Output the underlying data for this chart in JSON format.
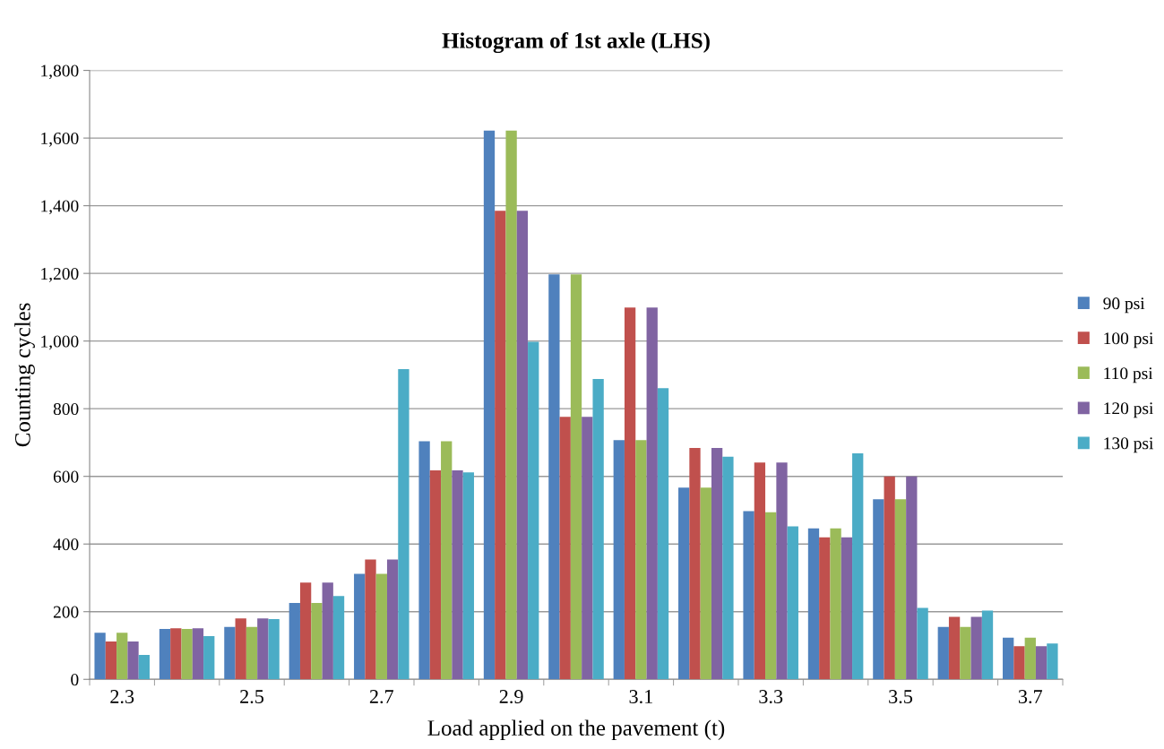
{
  "chart_data": {
    "type": "bar",
    "title": "Histogram of 1st axle (LHS)",
    "xlabel": "Load applied on the pavement (t)",
    "ylabel": "Counting cycles",
    "categories": [
      "2.3",
      null,
      "2.5",
      null,
      "2.7",
      null,
      "2.9",
      null,
      "3.1",
      null,
      "3.3",
      null,
      "3.5",
      null,
      "3.7"
    ],
    "series": [
      {
        "name": "90 psi",
        "color": "#4f81bd",
        "values": [
          138,
          149,
          155,
          226,
          312,
          704,
          1622,
          1197,
          707,
          567,
          497,
          446,
          532,
          155,
          123
        ]
      },
      {
        "name": "100 psi",
        "color": "#c0504d",
        "values": [
          112,
          151,
          180,
          286,
          354,
          618,
          1385,
          776,
          1099,
          684,
          641,
          420,
          600,
          185,
          98
        ]
      },
      {
        "name": "110 psi",
        "color": "#9bbb59",
        "values": [
          138,
          149,
          155,
          226,
          312,
          704,
          1622,
          1197,
          707,
          567,
          494,
          446,
          532,
          155,
          123
        ]
      },
      {
        "name": "120 psi",
        "color": "#8064a2",
        "values": [
          112,
          151,
          180,
          286,
          354,
          618,
          1385,
          776,
          1099,
          684,
          641,
          420,
          600,
          185,
          98
        ]
      },
      {
        "name": "130 psi",
        "color": "#4bacc6",
        "values": [
          72,
          128,
          178,
          246,
          917,
          612,
          998,
          888,
          861,
          658,
          452,
          668,
          211,
          203,
          106
        ]
      }
    ],
    "ylim": [
      0,
      1800
    ],
    "yticks": [
      {
        "value": 0,
        "label": "0"
      },
      {
        "value": 200,
        "label": "200"
      },
      {
        "value": 400,
        "label": "400"
      },
      {
        "value": 600,
        "label": "600"
      },
      {
        "value": 800,
        "label": "800"
      },
      {
        "value": 1000,
        "label": "1,000"
      },
      {
        "value": 1200,
        "label": "1,200"
      },
      {
        "value": 1400,
        "label": "1,400"
      },
      {
        "value": 1600,
        "label": "1,600"
      },
      {
        "value": 1800,
        "label": "1,800"
      }
    ],
    "grid": "y",
    "legend": "right"
  }
}
